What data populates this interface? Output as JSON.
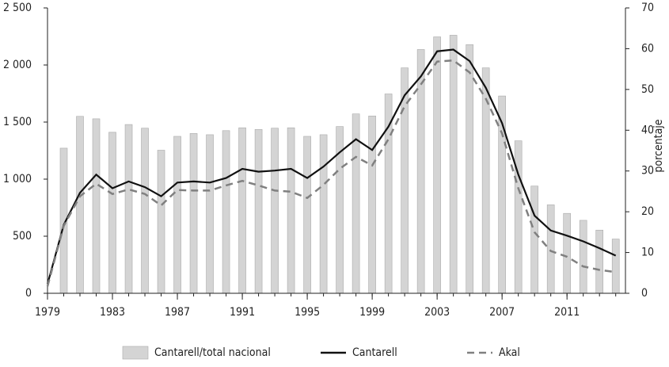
{
  "chart_data": {
    "type": "bar-line",
    "x": [
      1979,
      1980,
      1981,
      1982,
      1983,
      1984,
      1985,
      1986,
      1987,
      1988,
      1989,
      1990,
      1991,
      1992,
      1993,
      1994,
      1995,
      1996,
      1997,
      1998,
      1999,
      2000,
      2001,
      2002,
      2003,
      2004,
      2005,
      2006,
      2007,
      2008,
      2009,
      2010,
      2011,
      2012,
      2013,
      2014
    ],
    "xlim": [
      1979,
      2014.6
    ],
    "xticks": [
      1979,
      1983,
      1987,
      1991,
      1995,
      1999,
      2003,
      2007,
      2011
    ],
    "ylim": [
      0,
      2500
    ],
    "yticks": [
      0,
      500,
      {
        "value": 1000,
        "label": "1 000"
      },
      {
        "value": 1500,
        "label": "1 500"
      },
      {
        "value": 2000,
        "label": "2 000"
      },
      {
        "value": 2500,
        "label": "2 500"
      }
    ],
    "y2lim": [
      0,
      70
    ],
    "y2ticks": [
      0,
      10,
      20,
      30,
      40,
      50,
      60,
      70
    ],
    "y2label": "porcentaje",
    "series": [
      {
        "name": "Cantarell/total nacional",
        "type": "bar",
        "axis": "y2",
        "color": "#d4d4d4",
        "values": [
          null,
          35.6,
          43.4,
          42.8,
          39.5,
          41.4,
          40.5,
          35.1,
          38.5,
          39.2,
          38.9,
          39.9,
          40.6,
          40.2,
          40.5,
          40.6,
          38.5,
          38.9,
          40.9,
          44.0,
          43.5,
          48.9,
          55.3,
          59.8,
          62.9,
          63.3,
          61.0,
          55.3,
          48.4,
          37.4,
          26.3,
          21.7,
          19.6,
          17.9,
          15.5,
          13.3
        ]
      },
      {
        "name": "Cantarell",
        "type": "line",
        "color": "#111111",
        "dash": false,
        "values": [
          80,
          600,
          880,
          1040,
          920,
          980,
          930,
          850,
          970,
          980,
          970,
          1010,
          1090,
          1065,
          1075,
          1090,
          1010,
          1110,
          1235,
          1350,
          1255,
          1460,
          1735,
          1900,
          2120,
          2135,
          2035,
          1800,
          1490,
          1040,
          680,
          550,
          505,
          455,
          395,
          330
        ]
      },
      {
        "name": "Akal",
        "type": "line",
        "color": "#808080",
        "dash": true,
        "values": [
          60,
          590,
          850,
          960,
          870,
          910,
          870,
          770,
          905,
          900,
          900,
          945,
          985,
          945,
          900,
          890,
          835,
          950,
          1090,
          1195,
          1120,
          1350,
          1640,
          1830,
          2030,
          2040,
          1935,
          1705,
          1400,
          920,
          535,
          370,
          320,
          235,
          205,
          185
        ]
      }
    ]
  }
}
